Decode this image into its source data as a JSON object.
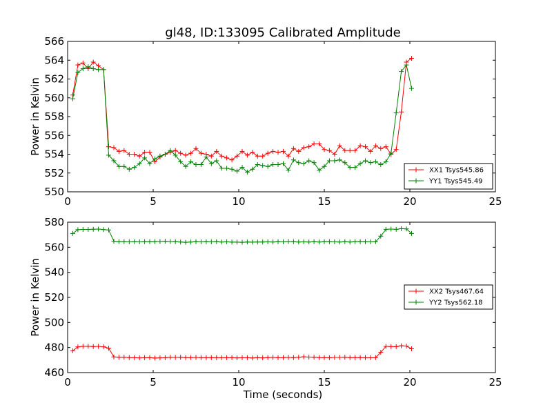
{
  "chart_data": [
    {
      "type": "line",
      "title": "gl48, ID:133095 Calibrated Amplitude",
      "xlabel": "",
      "ylabel": "Power in Kelvin",
      "xlim": [
        0,
        25
      ],
      "ylim": [
        550,
        566
      ],
      "xticks": [
        "0",
        "5",
        "10",
        "15",
        "20",
        "25"
      ],
      "yticks": [
        "550",
        "552",
        "554",
        "556",
        "558",
        "560",
        "562",
        "564",
        "566"
      ],
      "legend_position": "lower-right",
      "series": [
        {
          "name": "XX1 Tsys545.86",
          "color": "#ff0000",
          "x": [
            0.3,
            0.6,
            0.9,
            1.2,
            1.5,
            1.8,
            2.1,
            2.4,
            2.7,
            3.0,
            3.3,
            3.6,
            3.9,
            4.2,
            4.5,
            4.8,
            5.1,
            5.4,
            5.7,
            6.0,
            6.3,
            6.6,
            6.9,
            7.2,
            7.5,
            7.8,
            8.1,
            8.4,
            8.7,
            9.0,
            9.3,
            9.6,
            9.9,
            10.2,
            10.5,
            10.8,
            11.1,
            11.4,
            11.7,
            12.0,
            12.3,
            12.6,
            12.9,
            13.2,
            13.5,
            13.8,
            14.1,
            14.4,
            14.7,
            15.0,
            15.3,
            15.6,
            15.9,
            16.2,
            16.5,
            16.8,
            17.1,
            17.4,
            17.7,
            18.0,
            18.3,
            18.6,
            18.9,
            19.2,
            19.5,
            19.8,
            20.1
          ],
          "y": [
            560.3,
            563.5,
            563.7,
            563.1,
            563.8,
            563.4,
            563.0,
            554.8,
            554.7,
            554.3,
            554.4,
            554.0,
            554.0,
            553.8,
            554.2,
            554.2,
            553.2,
            553.7,
            554.0,
            554.2,
            554.4,
            554.1,
            553.9,
            554.1,
            554.6,
            554.1,
            554.0,
            553.8,
            554.3,
            553.8,
            553.6,
            553.4,
            553.8,
            554.3,
            553.9,
            554.2,
            553.8,
            553.8,
            554.1,
            554.3,
            554.2,
            554.3,
            553.8,
            554.6,
            554.3,
            554.7,
            554.8,
            555.1,
            555.1,
            554.5,
            554.4,
            554.0,
            554.9,
            554.4,
            554.4,
            554.4,
            554.9,
            554.8,
            554.3,
            554.9,
            554.6,
            554.8,
            554.0,
            554.5,
            558.5,
            563.8,
            564.2
          ]
        },
        {
          "name": "YY1 Tsys545.49",
          "color": "#008000",
          "x": [
            0.3,
            0.6,
            0.9,
            1.2,
            1.5,
            1.8,
            2.1,
            2.4,
            2.7,
            3.0,
            3.3,
            3.6,
            3.9,
            4.2,
            4.5,
            4.8,
            5.1,
            5.4,
            5.7,
            6.0,
            6.3,
            6.6,
            6.9,
            7.2,
            7.5,
            7.8,
            8.1,
            8.4,
            8.7,
            9.0,
            9.3,
            9.6,
            9.9,
            10.2,
            10.5,
            10.8,
            11.1,
            11.4,
            11.7,
            12.0,
            12.3,
            12.6,
            12.9,
            13.2,
            13.5,
            13.8,
            14.1,
            14.4,
            14.7,
            15.0,
            15.3,
            15.6,
            15.9,
            16.2,
            16.5,
            16.8,
            17.1,
            17.4,
            17.7,
            18.0,
            18.3,
            18.6,
            18.9,
            19.2,
            19.5,
            19.8,
            20.1
          ],
          "y": [
            559.9,
            562.7,
            563.1,
            563.3,
            563.1,
            563.0,
            563.0,
            553.9,
            553.3,
            552.7,
            552.7,
            552.4,
            552.6,
            553.0,
            553.6,
            553.0,
            553.5,
            553.8,
            554.0,
            554.4,
            553.9,
            553.2,
            552.7,
            553.2,
            552.9,
            552.9,
            553.7,
            553.0,
            553.3,
            552.5,
            552.5,
            552.4,
            552.2,
            552.6,
            552.1,
            552.4,
            552.9,
            552.8,
            552.7,
            552.9,
            552.9,
            553.0,
            552.3,
            553.4,
            553.1,
            553.0,
            553.3,
            553.1,
            552.3,
            552.7,
            553.3,
            553.3,
            553.4,
            553.1,
            552.6,
            552.6,
            553.0,
            553.3,
            553.1,
            553.2,
            552.9,
            553.2,
            554.1,
            558.4,
            562.8,
            563.5,
            561.0
          ]
        }
      ]
    },
    {
      "type": "line",
      "title": "",
      "xlabel": "Time (seconds)",
      "ylabel": "Power in Kelvin",
      "xlim": [
        0,
        25
      ],
      "ylim": [
        460,
        580
      ],
      "xticks": [
        "0",
        "5",
        "10",
        "15",
        "20",
        "25"
      ],
      "yticks": [
        "460",
        "480",
        "500",
        "520",
        "540",
        "560",
        "580"
      ],
      "legend_position": "center-right",
      "series": [
        {
          "name": "XX2 Tsys467.64",
          "color": "#ff0000",
          "x": [
            0.3,
            0.6,
            0.9,
            1.2,
            1.5,
            1.8,
            2.1,
            2.4,
            2.7,
            3.0,
            3.3,
            3.6,
            3.9,
            4.2,
            4.5,
            4.8,
            5.1,
            5.4,
            5.7,
            6.0,
            6.3,
            6.6,
            6.9,
            7.2,
            7.5,
            7.8,
            8.1,
            8.4,
            8.7,
            9.0,
            9.3,
            9.6,
            9.9,
            10.2,
            10.5,
            10.8,
            11.1,
            11.4,
            11.7,
            12.0,
            12.3,
            12.6,
            12.9,
            13.2,
            13.5,
            13.8,
            14.1,
            14.4,
            14.7,
            15.0,
            15.3,
            15.6,
            15.9,
            16.2,
            16.5,
            16.8,
            17.1,
            17.4,
            17.7,
            18.0,
            18.3,
            18.6,
            18.9,
            19.2,
            19.5,
            19.8,
            20.1
          ],
          "y": [
            477.5,
            480.5,
            481.0,
            481.0,
            480.8,
            480.9,
            480.6,
            479.5,
            472.5,
            472.2,
            472.2,
            472.0,
            472.0,
            471.8,
            471.9,
            472.0,
            471.6,
            471.8,
            471.9,
            472.2,
            472.1,
            472.2,
            472.0,
            472.0,
            472.1,
            472.0,
            472.0,
            471.9,
            471.9,
            471.9,
            471.9,
            472.0,
            471.8,
            471.9,
            471.9,
            471.7,
            472.0,
            471.8,
            472.0,
            472.1,
            471.9,
            472.0,
            472.1,
            472.0,
            472.2,
            472.6,
            472.4,
            472.2,
            472.0,
            472.0,
            471.9,
            472.1,
            472.1,
            472.2,
            472.0,
            472.0,
            472.0,
            472.0,
            471.9,
            472.0,
            476.2,
            480.9,
            480.8,
            480.7,
            481.4,
            481.2,
            479.0
          ]
        },
        {
          "name": "YY2 Tsys562.18",
          "color": "#008000",
          "x": [
            0.3,
            0.6,
            0.9,
            1.2,
            1.5,
            1.8,
            2.1,
            2.4,
            2.7,
            3.0,
            3.3,
            3.6,
            3.9,
            4.2,
            4.5,
            4.8,
            5.1,
            5.4,
            5.7,
            6.0,
            6.3,
            6.6,
            6.9,
            7.2,
            7.5,
            7.8,
            8.1,
            8.4,
            8.7,
            9.0,
            9.3,
            9.6,
            9.9,
            10.2,
            10.5,
            10.8,
            11.1,
            11.4,
            11.7,
            12.0,
            12.3,
            12.6,
            12.9,
            13.2,
            13.5,
            13.8,
            14.1,
            14.4,
            14.7,
            15.0,
            15.3,
            15.6,
            15.9,
            16.2,
            16.5,
            16.8,
            17.1,
            17.4,
            17.7,
            18.0,
            18.3,
            18.6,
            18.9,
            19.2,
            19.5,
            19.8,
            20.1
          ],
          "y": [
            571.0,
            574.0,
            574.2,
            574.2,
            574.4,
            574.5,
            574.1,
            573.8,
            564.8,
            564.5,
            564.4,
            564.3,
            564.4,
            564.3,
            564.4,
            564.4,
            564.5,
            564.6,
            564.8,
            564.6,
            564.5,
            564.2,
            564.0,
            564.2,
            564.4,
            564.3,
            564.5,
            564.3,
            564.4,
            564.2,
            564.3,
            564.1,
            564.1,
            564.0,
            564.2,
            564.1,
            564.2,
            564.2,
            564.3,
            564.2,
            564.4,
            564.3,
            564.6,
            564.4,
            564.2,
            564.3,
            564.2,
            564.4,
            564.2,
            564.5,
            564.4,
            564.3,
            564.2,
            564.4,
            564.2,
            564.5,
            564.4,
            564.5,
            564.3,
            564.4,
            568.8,
            574.3,
            574.5,
            574.3,
            574.8,
            574.6,
            571.0
          ]
        }
      ]
    }
  ]
}
